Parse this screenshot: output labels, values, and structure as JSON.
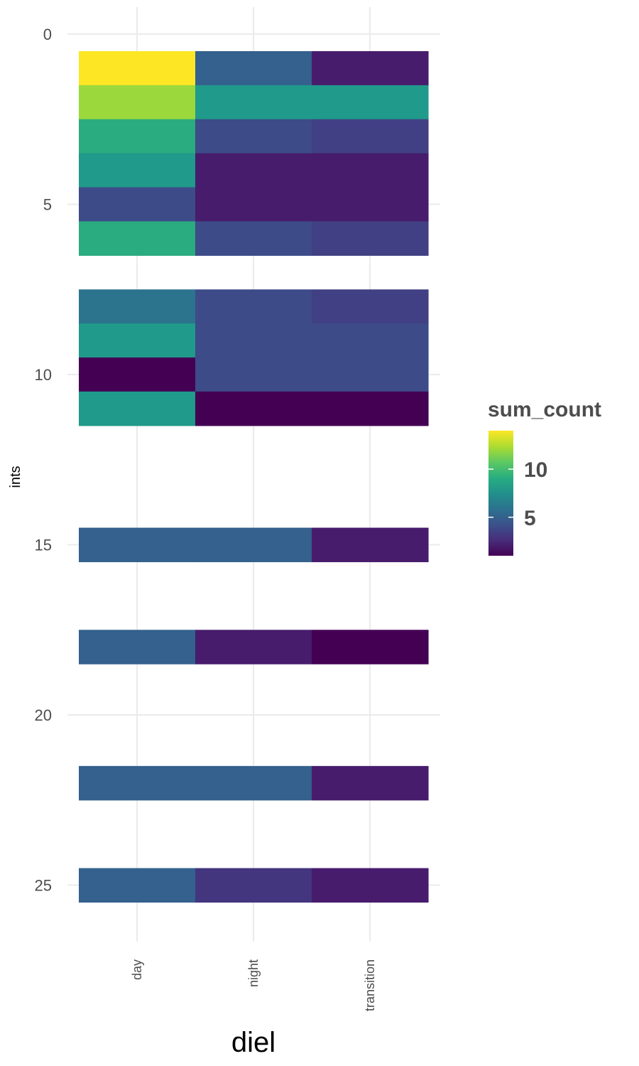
{
  "chart_data": {
    "type": "heatmap",
    "title": "",
    "xlabel": "diel",
    "ylabel": "ints",
    "x_categories": [
      "day",
      "night",
      "transition"
    ],
    "y_ticks": [
      0,
      5,
      10,
      15,
      20,
      25
    ],
    "ylim": [
      -0.8,
      26.5
    ],
    "y_reversed": true,
    "grid": true,
    "colorscale": "viridis",
    "legend": {
      "title": "sum_count",
      "position": "right",
      "ticks": [
        5,
        10
      ],
      "range": [
        1,
        14
      ]
    },
    "rows": [
      {
        "y": 1,
        "values": [
          14,
          5,
          2
        ]
      },
      {
        "y": 2,
        "values": [
          12,
          8,
          8
        ]
      },
      {
        "y": 3,
        "values": [
          9,
          4,
          3.5
        ]
      },
      {
        "y": 4,
        "values": [
          8,
          2,
          2
        ]
      },
      {
        "y": 5,
        "values": [
          4,
          2,
          2
        ]
      },
      {
        "y": 6,
        "values": [
          9,
          4,
          3.5
        ]
      },
      {
        "y": 8,
        "values": [
          6,
          4,
          3.5
        ]
      },
      {
        "y": 9,
        "values": [
          8,
          4,
          4
        ]
      },
      {
        "y": 10,
        "values": [
          1,
          4,
          4
        ]
      },
      {
        "y": 11,
        "values": [
          8,
          1,
          1
        ]
      },
      {
        "y": 15,
        "values": [
          5,
          5,
          2
        ]
      },
      {
        "y": 18,
        "values": [
          5,
          2,
          1
        ]
      },
      {
        "y": 22,
        "values": [
          5,
          5,
          2
        ]
      },
      {
        "y": 25,
        "values": [
          5,
          3,
          2
        ]
      }
    ]
  }
}
